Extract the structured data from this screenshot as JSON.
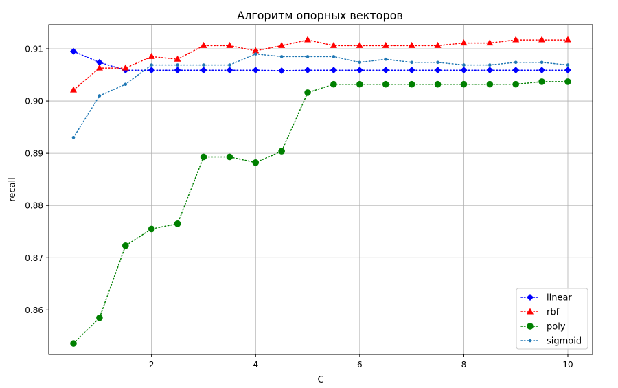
{
  "chart_data": {
    "type": "line",
    "title": "Алгоритм опорных векторов",
    "xlabel": "C",
    "ylabel": "recall",
    "xlim": [
      0.025,
      10.475
    ],
    "ylim": [
      0.8515,
      0.9146
    ],
    "xticks": [
      2,
      4,
      6,
      8,
      10
    ],
    "xtick_labels": [
      "2",
      "4",
      "6",
      "8",
      "10"
    ],
    "yticks": [
      0.86,
      0.87,
      0.88,
      0.89,
      0.9,
      0.91
    ],
    "ytick_labels": [
      "0.86",
      "0.87",
      "0.88",
      "0.89",
      "0.90",
      "0.91"
    ],
    "grid": true,
    "legend_position": "bottom-right",
    "x": [
      0.5,
      1.0,
      1.5,
      2.0,
      2.5,
      3.0,
      3.5,
      4.0,
      4.5,
      5.0,
      5.5,
      6.0,
      6.5,
      7.0,
      7.5,
      8.0,
      8.5,
      9.0,
      9.5,
      10.0
    ],
    "series": [
      {
        "name": "linear",
        "color": "#0000ff",
        "marker": "diamond",
        "values": [
          0.9095,
          0.9074,
          0.9059,
          0.9059,
          0.9059,
          0.9059,
          0.9059,
          0.9059,
          0.9058,
          0.9059,
          0.9059,
          0.9059,
          0.9059,
          0.9059,
          0.9059,
          0.9059,
          0.9059,
          0.9059,
          0.9059,
          0.9059
        ]
      },
      {
        "name": "rbf",
        "color": "#ff0000",
        "marker": "triangle",
        "values": [
          0.9021,
          0.9063,
          0.9063,
          0.9085,
          0.908,
          0.9106,
          0.9106,
          0.9096,
          0.9106,
          0.9117,
          0.9106,
          0.9106,
          0.9106,
          0.9106,
          0.9106,
          0.9111,
          0.9111,
          0.9117,
          0.9117,
          0.9117
        ]
      },
      {
        "name": "poly",
        "color": "#008000",
        "marker": "circle",
        "values": [
          0.8536,
          0.8585,
          0.8723,
          0.8755,
          0.8765,
          0.8893,
          0.8893,
          0.8882,
          0.8904,
          0.9016,
          0.9032,
          0.9032,
          0.9032,
          0.9032,
          0.9032,
          0.9032,
          0.9032,
          0.9032,
          0.9037,
          0.9037
        ]
      },
      {
        "name": "sigmoid",
        "color": "#1f77b4",
        "marker": "dot",
        "values": [
          0.893,
          0.901,
          0.9032,
          0.9069,
          0.9069,
          0.9069,
          0.9069,
          0.909,
          0.9085,
          0.9085,
          0.9085,
          0.9074,
          0.908,
          0.9074,
          0.9074,
          0.9069,
          0.9069,
          0.9074,
          0.9074,
          0.9069
        ]
      }
    ]
  }
}
